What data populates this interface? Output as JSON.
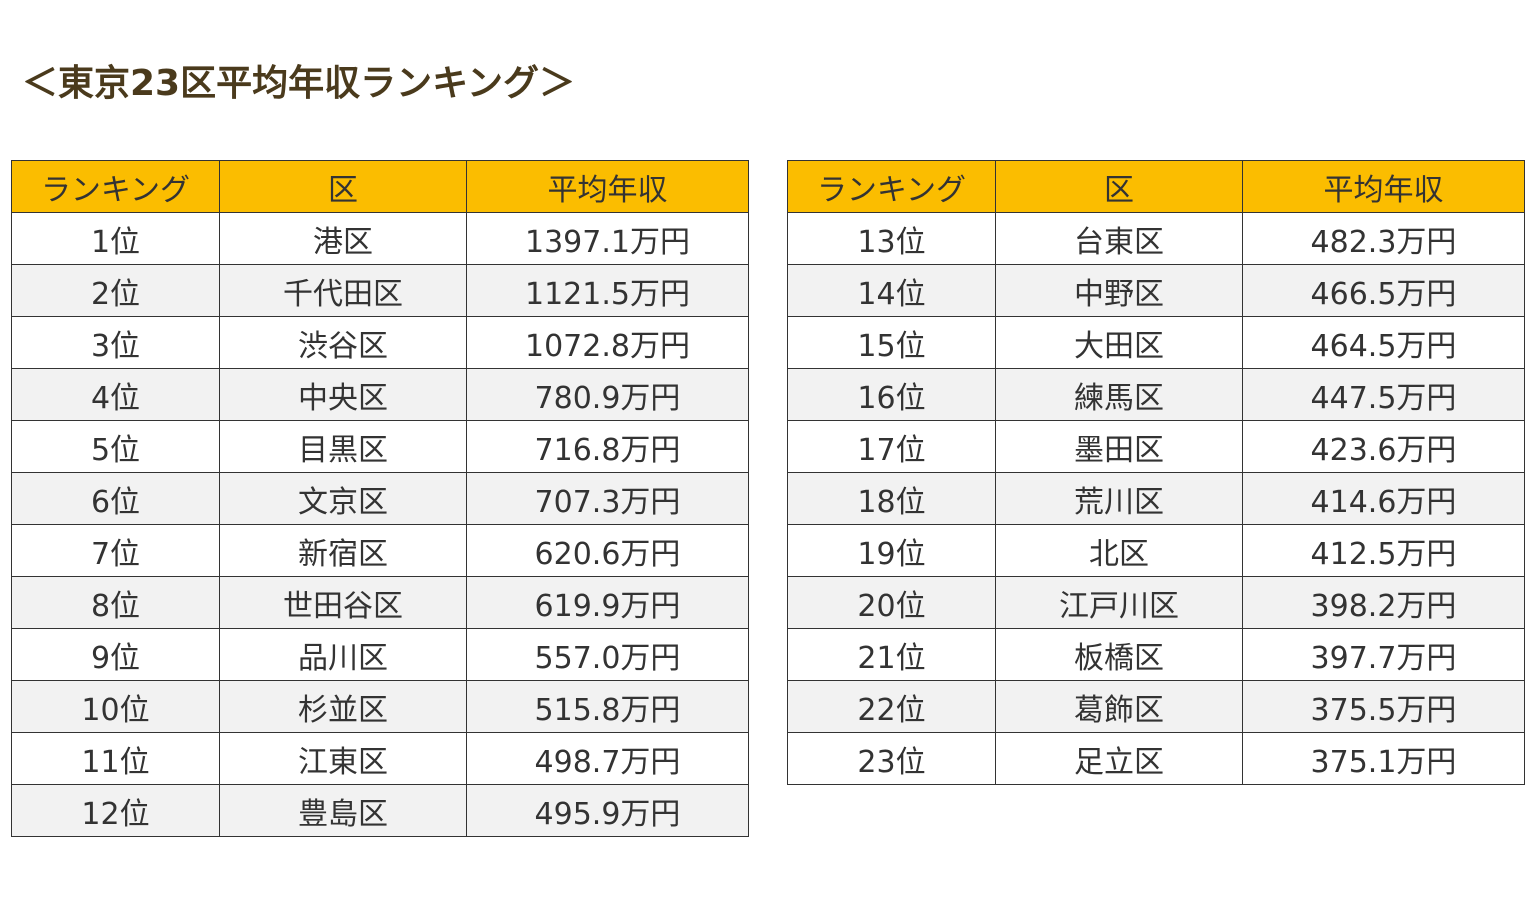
{
  "title": "＜東京23区平均年収ランキング＞",
  "tables": [
    {
      "header": [
        "ランキング",
        "区",
        "平均年収"
      ],
      "rows": [
        [
          "1位",
          "港区",
          "1397.1万円"
        ],
        [
          "2位",
          "千代田区",
          "1121.5万円"
        ],
        [
          "3位",
          "渋谷区",
          "1072.8万円"
        ],
        [
          "4位",
          "中央区",
          "780.9万円"
        ],
        [
          "5位",
          "目黒区",
          "716.8万円"
        ],
        [
          "6位",
          "文京区",
          "707.3万円"
        ],
        [
          "7位",
          "新宿区",
          "620.6万円"
        ],
        [
          "8位",
          "世田谷区",
          "619.9万円"
        ],
        [
          "9位",
          "品川区",
          "557.0万円"
        ],
        [
          "10位",
          "杉並区",
          "515.8万円"
        ],
        [
          "11位",
          "江東区",
          "498.7万円"
        ],
        [
          "12位",
          "豊島区",
          "495.9万円"
        ]
      ]
    },
    {
      "header": [
        "ランキング",
        "区",
        "平均年収"
      ],
      "rows": [
        [
          "13位",
          "台東区",
          "482.3万円"
        ],
        [
          "14位",
          "中野区",
          "466.5万円"
        ],
        [
          "15位",
          "大田区",
          "464.5万円"
        ],
        [
          "16位",
          "練馬区",
          "447.5万円"
        ],
        [
          "17位",
          "墨田区",
          "423.6万円"
        ],
        [
          "18位",
          "荒川区",
          "414.6万円"
        ],
        [
          "19位",
          "北区",
          "412.5万円"
        ],
        [
          "20位",
          "江戸川区",
          "398.2万円"
        ],
        [
          "21位",
          "板橋区",
          "397.7万円"
        ],
        [
          "22位",
          "葛飾区",
          "375.5万円"
        ],
        [
          "23位",
          "足立区",
          "375.1万円"
        ]
      ]
    }
  ]
}
